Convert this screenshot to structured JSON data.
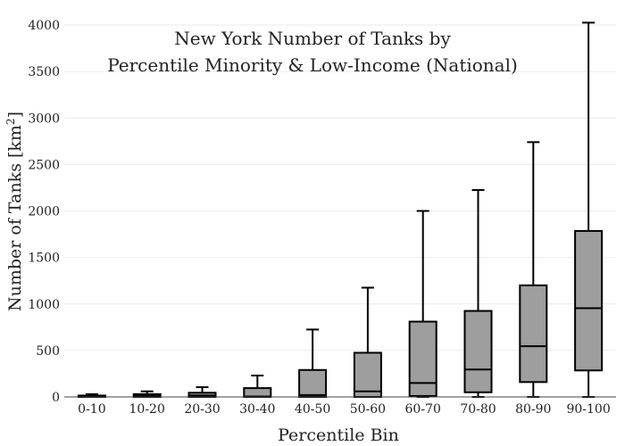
{
  "chart_data": {
    "type": "box",
    "title_lines": [
      "New York Number of Tanks by",
      "Percentile Minority & Low-Income (National)"
    ],
    "xlabel": "Percentile Bin",
    "ylabel_main": "Number of Tanks  [km",
    "ylabel_sup": "2",
    "ylabel_end": "]",
    "ylim": [
      0,
      4100
    ],
    "yticks": [
      0,
      500,
      1000,
      1500,
      2000,
      2500,
      3000,
      3500,
      4000
    ],
    "grid": true,
    "categories": [
      "0-10",
      "10-20",
      "20-30",
      "30-40",
      "40-50",
      "50-60",
      "60-70",
      "70-80",
      "80-90",
      "90-100"
    ],
    "boxes": [
      {
        "min": 0,
        "q1": 0,
        "median": 5,
        "q3": 15,
        "max": 30
      },
      {
        "min": 0,
        "q1": 0,
        "median": 10,
        "q3": 30,
        "max": 60
      },
      {
        "min": 0,
        "q1": 0,
        "median": 15,
        "q3": 45,
        "max": 105
      },
      {
        "min": 0,
        "q1": 0,
        "median": 5,
        "q3": 95,
        "max": 230
      },
      {
        "min": 0,
        "q1": 0,
        "median": 20,
        "q3": 290,
        "max": 725
      },
      {
        "min": 0,
        "q1": 0,
        "median": 60,
        "q3": 475,
        "max": 1175
      },
      {
        "min": 0,
        "q1": 10,
        "median": 150,
        "q3": 810,
        "max": 2000
      },
      {
        "min": 0,
        "q1": 50,
        "median": 295,
        "q3": 925,
        "max": 2225
      },
      {
        "min": 0,
        "q1": 160,
        "median": 545,
        "q3": 1200,
        "max": 2740
      },
      {
        "min": 0,
        "q1": 285,
        "median": 955,
        "q3": 1785,
        "max": 4025
      }
    ]
  }
}
